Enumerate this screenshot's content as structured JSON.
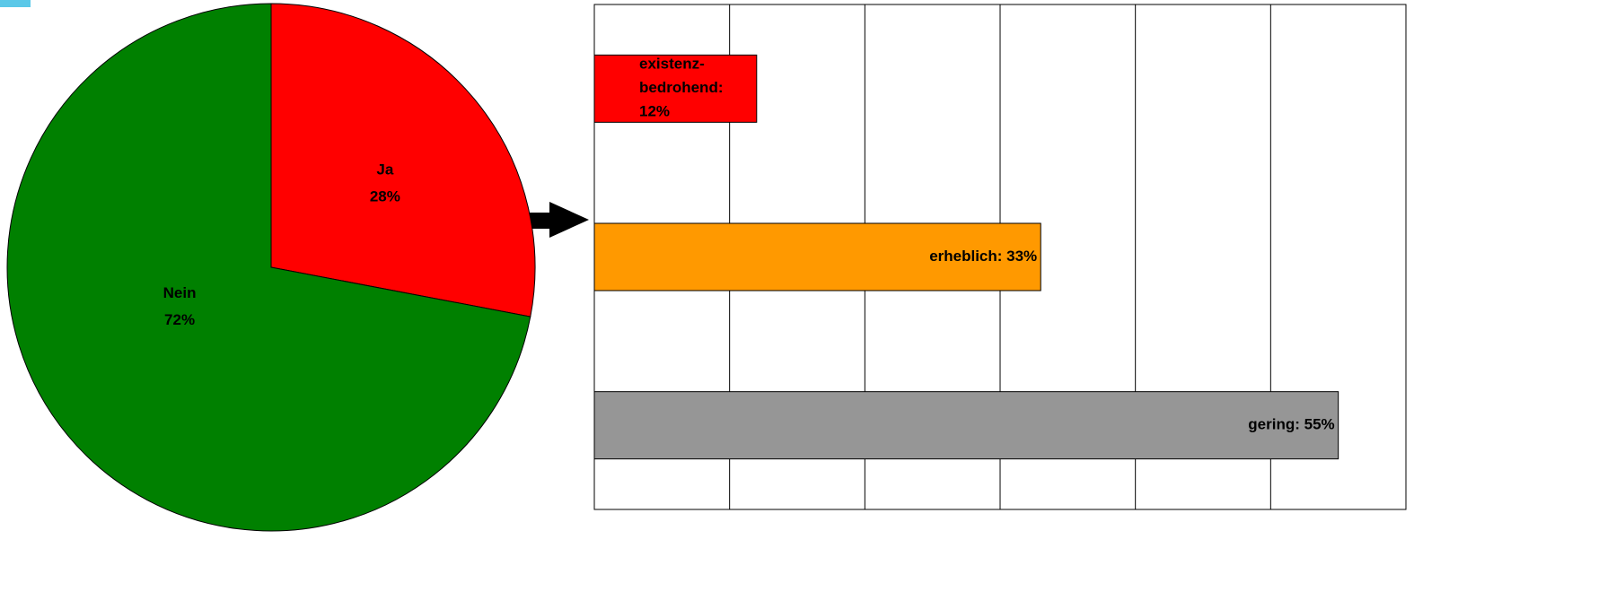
{
  "chart_data": [
    {
      "type": "pie",
      "categories": [
        "Ja",
        "Nein"
      ],
      "values": [
        28,
        72
      ],
      "value_labels": [
        "28%",
        "72%"
      ],
      "colors": [
        "#ff0000",
        "#008000"
      ]
    },
    {
      "type": "hbar",
      "categories": [
        "existenz-bedrohend",
        "erheblich",
        "gering"
      ],
      "values": [
        12,
        33,
        55
      ],
      "value_labels": [
        "existenz-bedrohend: 12%",
        "erheblich: 33%",
        "gering: 55%"
      ],
      "colors": [
        "#ff0000",
        "#ff9900",
        "#969696"
      ],
      "xlim": [
        0,
        60
      ],
      "xticks": [
        0,
        10,
        20,
        30,
        40,
        50,
        60
      ],
      "grid": true
    }
  ]
}
